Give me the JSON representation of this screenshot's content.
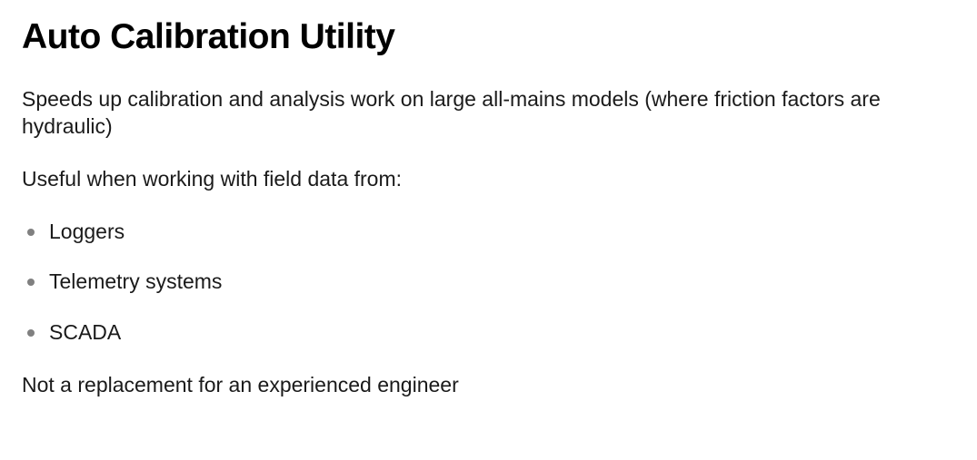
{
  "title": "Auto Calibration Utility",
  "intro_paragraph": "Speeds up calibration and analysis work on large all-mains models (where friction factors are hydraulic)",
  "list_intro": "Useful when working with field data from:",
  "list_items": [
    "Loggers",
    "Telemetry systems",
    "SCADA"
  ],
  "closing_paragraph": "Not a replacement for an experienced engineer",
  "styling": {
    "background_color": "#ffffff",
    "text_color": "#1a1a1a",
    "title_color": "#000000",
    "bullet_color": "#808080",
    "title_fontsize": 39,
    "title_fontweight": 800,
    "body_fontsize": 23,
    "body_fontweight": 400,
    "line_height": 1.3,
    "bullet_size": 8
  }
}
